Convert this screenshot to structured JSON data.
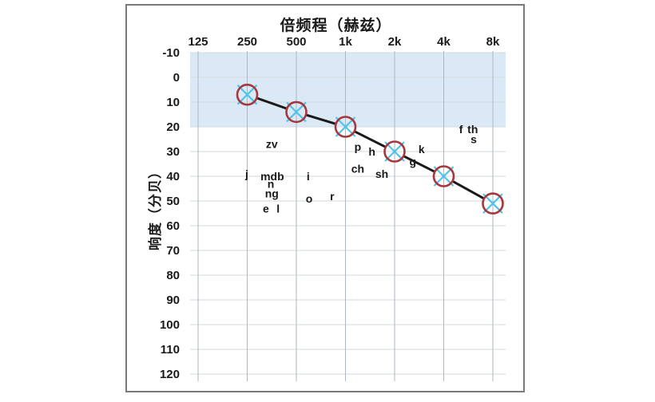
{
  "chart_data": {
    "type": "line",
    "title": "倍频程（赫兹）",
    "ylabel": "响度（分贝）",
    "x_tick_labels": [
      "125",
      "250",
      "500",
      "1k",
      "2k",
      "4k",
      "8k"
    ],
    "y_tick_values": [
      -10,
      0,
      10,
      20,
      30,
      40,
      50,
      60,
      70,
      80,
      90,
      100,
      110,
      120
    ],
    "ylim": [
      -10,
      120
    ],
    "x_axis_scale": "octave",
    "grid": "on",
    "legend_position": "none",
    "shaded_band": {
      "from_db": -10,
      "to_db": 20
    },
    "series": [
      {
        "name": "hearing-threshold",
        "marker": "circle-with-x",
        "points": [
          {
            "freq": "250",
            "db": 7
          },
          {
            "freq": "500",
            "db": 14
          },
          {
            "freq": "1k",
            "db": 20
          },
          {
            "freq": "2k",
            "db": 30
          },
          {
            "freq": "4k",
            "db": 40
          },
          {
            "freq": "8k",
            "db": 51
          }
        ]
      }
    ],
    "phoneme_annotations": [
      {
        "label": "zv",
        "oct": 1.5,
        "db": 27
      },
      {
        "label": "j",
        "oct": 0.99,
        "db": 39
      },
      {
        "label": "mdb",
        "oct": 1.51,
        "db": 40
      },
      {
        "label": "n",
        "oct": 1.48,
        "db": 43
      },
      {
        "label": "ng",
        "oct": 1.5,
        "db": 47
      },
      {
        "label": "e",
        "oct": 1.38,
        "db": 53
      },
      {
        "label": "l",
        "oct": 1.63,
        "db": 53
      },
      {
        "label": "i",
        "oct": 2.24,
        "db": 40
      },
      {
        "label": "o",
        "oct": 2.26,
        "db": 49
      },
      {
        "label": "r",
        "oct": 2.73,
        "db": 48
      },
      {
        "label": "p",
        "oct": 3.25,
        "db": 28
      },
      {
        "label": "h",
        "oct": 3.54,
        "db": 30
      },
      {
        "label": "ch",
        "oct": 3.25,
        "db": 37
      },
      {
        "label": "sh",
        "oct": 3.74,
        "db": 39
      },
      {
        "label": "g",
        "oct": 4.37,
        "db": 34
      },
      {
        "label": "k",
        "oct": 4.55,
        "db": 29
      },
      {
        "label": "f",
        "oct": 5.35,
        "db": 21
      },
      {
        "label": "th",
        "oct": 5.59,
        "db": 21
      },
      {
        "label": "s",
        "oct": 5.61,
        "db": 25
      }
    ],
    "colors": {
      "band": "#dbe9f6",
      "grid_horizontal": "#d3dade",
      "grid_vertical": "#aeb6c0",
      "data_line": "#1a1a1a",
      "marker_circle": "#a6373d",
      "marker_x": "#4fc3e8",
      "text": "#1a1a1a",
      "frame_border": "#7a7a7a"
    }
  }
}
